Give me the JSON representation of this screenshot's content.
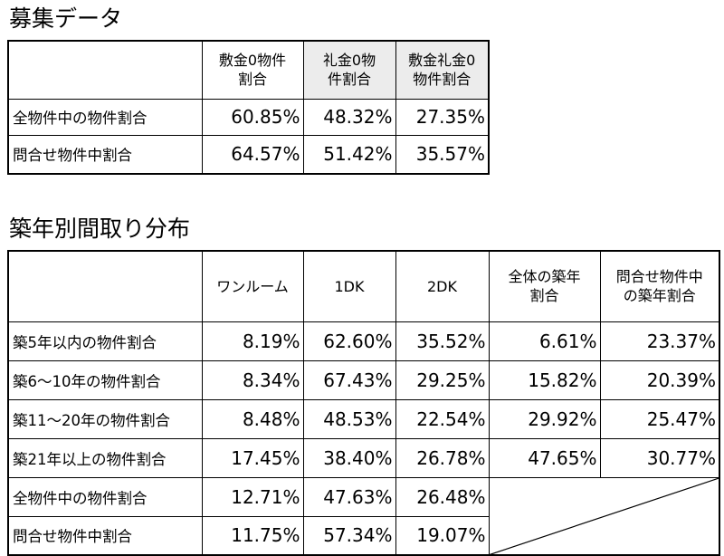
{
  "section1": {
    "title": "募集データ",
    "headers": [
      "",
      "敷金0物件\n割合",
      "礼金0物\n件割合",
      "敷金礼金0\n物件割合"
    ],
    "rows": [
      {
        "label": "全物件中の物件割合",
        "values": [
          "60.85%",
          "48.32%",
          "27.35%"
        ]
      },
      {
        "label": "問合せ物件中割合",
        "values": [
          "64.57%",
          "51.42%",
          "35.57%"
        ]
      }
    ]
  },
  "section2": {
    "title": "築年別間取り分布",
    "headers": [
      "",
      "ワンルーム",
      "1DK",
      "2DK",
      "全体の築年\n割合",
      "問合せ物件中\nの築年割合"
    ],
    "rows": [
      {
        "label": "築5年以内の物件割合",
        "values": [
          "8.19%",
          "62.60%",
          "35.52%",
          "6.61%",
          "23.37%"
        ]
      },
      {
        "label": "築6～10年の物件割合",
        "values": [
          "8.34%",
          "67.43%",
          "29.25%",
          "15.82%",
          "20.39%"
        ]
      },
      {
        "label": "築11～20年の物件割合",
        "values": [
          "8.48%",
          "48.53%",
          "22.54%",
          "29.92%",
          "25.47%"
        ]
      },
      {
        "label": "築21年以上の物件割合",
        "values": [
          "17.45%",
          "38.40%",
          "26.78%",
          "47.65%",
          "30.77%"
        ]
      },
      {
        "label": "全物件中の物件割合",
        "values": [
          "12.71%",
          "47.63%",
          "26.48%"
        ]
      },
      {
        "label": "問合せ物件中割合",
        "values": [
          "11.75%",
          "57.34%",
          "19.07%"
        ]
      }
    ]
  },
  "colors": {
    "header_shade": "#ececec",
    "border": "#000000"
  }
}
